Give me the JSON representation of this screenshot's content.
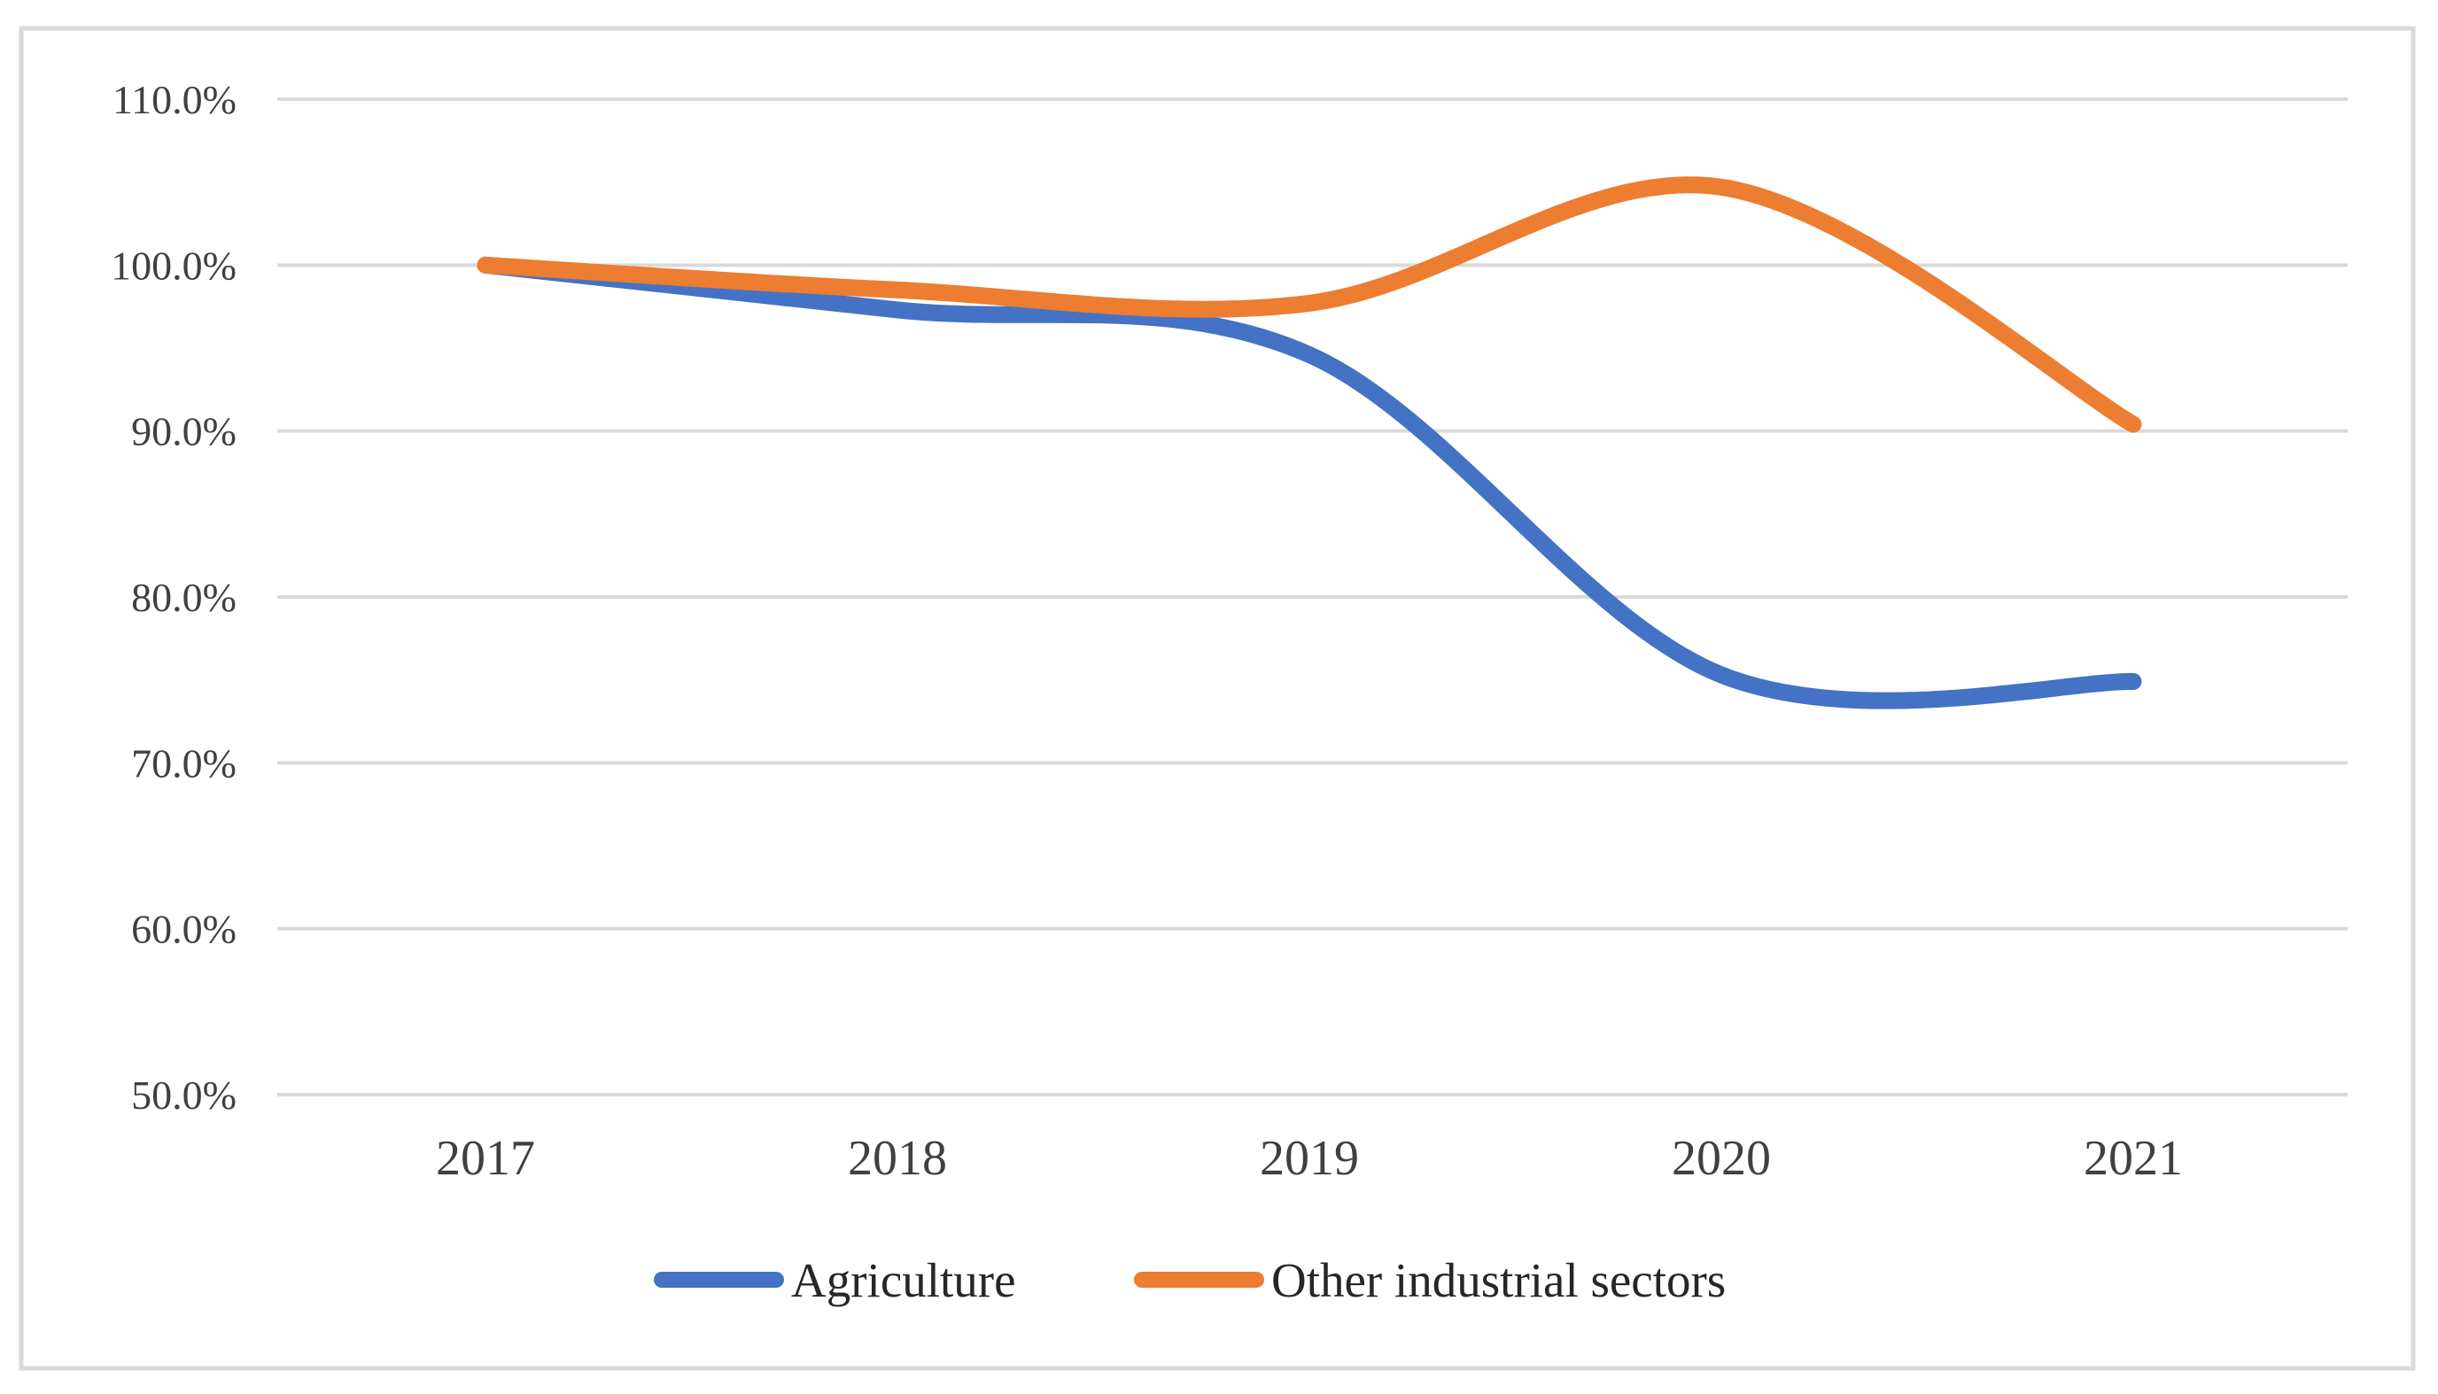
{
  "figure": {
    "background": "#ffffff",
    "border_color": "#d9d9d9",
    "gridline_color": "#d9d9d9",
    "tick_text_color": "#404040"
  },
  "chart_data": {
    "type": "line",
    "title": "",
    "xlabel": "",
    "ylabel": "",
    "smoothed": true,
    "grid": "horizontal",
    "legend_position": "bottom",
    "x": [
      2017,
      2018,
      2019,
      2020,
      2021
    ],
    "x_tick_labels": [
      "2017",
      "2018",
      "2019",
      "2020",
      "2021"
    ],
    "y_axis": {
      "min": 50,
      "max": 110,
      "step": 10,
      "unit": "%",
      "tick_labels": [
        "110.0%",
        "100.0%",
        "90.0%",
        "80.0%",
        "70.0%",
        "60.0%",
        "50.0%"
      ]
    },
    "series": [
      {
        "name": "Agriculture",
        "color": "#4472C4",
        "values_percent": [
          100.0,
          97.3,
          94.6,
          75.3,
          74.9
        ]
      },
      {
        "name": "Other industrial sectors",
        "color": "#ED7D31",
        "values_percent": [
          100.0,
          98.5,
          97.7,
          104.7,
          90.4
        ]
      }
    ]
  },
  "legend": {
    "items": [
      {
        "label": "Agriculture",
        "color": "#4472C4"
      },
      {
        "label": "Other industrial sectors",
        "color": "#ED7D31"
      }
    ]
  }
}
